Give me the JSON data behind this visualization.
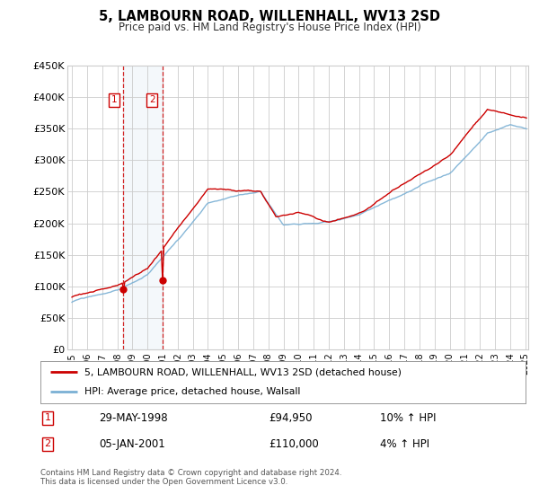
{
  "title": "5, LAMBOURN ROAD, WILLENHALL, WV13 2SD",
  "subtitle": "Price paid vs. HM Land Registry's House Price Index (HPI)",
  "red_label": "5, LAMBOURN ROAD, WILLENHALL, WV13 2SD (detached house)",
  "blue_label": "HPI: Average price, detached house, Walsall",
  "annotation1_date": "29-MAY-1998",
  "annotation1_price": "£94,950",
  "annotation1_hpi": "10% ↑ HPI",
  "annotation2_date": "05-JAN-2001",
  "annotation2_price": "£110,000",
  "annotation2_hpi": "4% ↑ HPI",
  "footer": "Contains HM Land Registry data © Crown copyright and database right 2024.\nThis data is licensed under the Open Government Licence v3.0.",
  "ylim": [
    0,
    450000
  ],
  "yticks": [
    0,
    50000,
    100000,
    150000,
    200000,
    250000,
    300000,
    350000,
    400000,
    450000
  ],
  "sale1_year": 1998.41,
  "sale1_value": 94950,
  "sale2_year": 2001.01,
  "sale2_value": 110000,
  "background_color": "#ffffff",
  "plot_bg_color": "#ffffff",
  "grid_color": "#cccccc",
  "red_color": "#cc0000",
  "blue_color": "#7ab0d4",
  "hatch_color": "#cccccc"
}
